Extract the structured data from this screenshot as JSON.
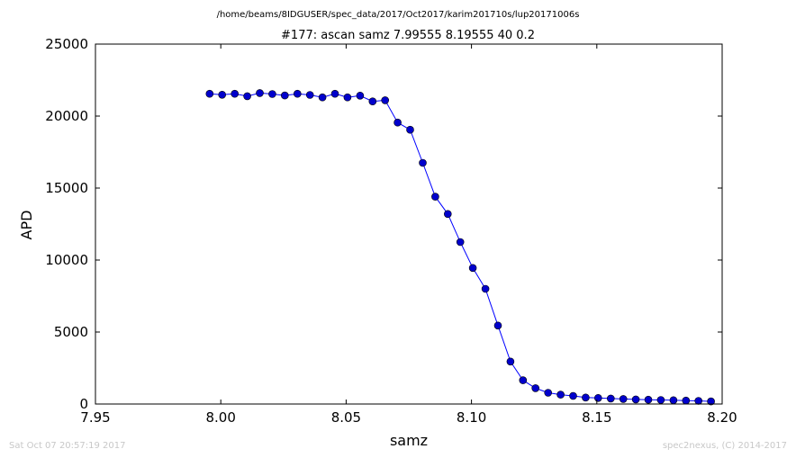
{
  "chart_data": {
    "type": "line",
    "suptitle": "/home/beams/8IDGUSER/spec_data/2017/Oct2017/karim201710s/lup20171006s",
    "title": "#177: ascan  samz 7.99555 8.19555  40 0.2",
    "xlabel": "samz",
    "ylabel": "APD",
    "xlim": [
      7.95,
      8.2
    ],
    "ylim": [
      0,
      25000
    ],
    "x_ticks": [
      {
        "value": 7.95,
        "label": "7.95"
      },
      {
        "value": 8.0,
        "label": "8.00"
      },
      {
        "value": 8.05,
        "label": "8.05"
      },
      {
        "value": 8.1,
        "label": "8.10"
      },
      {
        "value": 8.15,
        "label": "8.15"
      },
      {
        "value": 8.2,
        "label": "8.20"
      }
    ],
    "y_ticks": [
      {
        "value": 0,
        "label": "0"
      },
      {
        "value": 5000,
        "label": "5000"
      },
      {
        "value": 10000,
        "label": "10000"
      },
      {
        "value": 15000,
        "label": "15000"
      },
      {
        "value": 20000,
        "label": "20000"
      },
      {
        "value": 25000,
        "label": "25000"
      }
    ],
    "grid": false,
    "line_color": "#0000ff",
    "marker_color": "#0000cc",
    "x": [
      7.99555,
      8.00055,
      8.00555,
      8.01055,
      8.01555,
      8.02055,
      8.02555,
      8.03055,
      8.03555,
      8.04055,
      8.04555,
      8.05055,
      8.05555,
      8.06055,
      8.06555,
      8.07055,
      8.07555,
      8.08055,
      8.08555,
      8.09055,
      8.09555,
      8.10055,
      8.10555,
      8.11055,
      8.11555,
      8.12055,
      8.12555,
      8.13055,
      8.13555,
      8.14055,
      8.14555,
      8.15055,
      8.15555,
      8.16055,
      8.16555,
      8.17055,
      8.17555,
      8.18055,
      8.18555,
      8.19055,
      8.19555
    ],
    "y": [
      21550,
      21480,
      21550,
      21380,
      21600,
      21530,
      21430,
      21550,
      21470,
      21300,
      21550,
      21300,
      21420,
      21020,
      21100,
      19550,
      19050,
      16750,
      14400,
      13200,
      11250,
      9450,
      8000,
      5450,
      2950,
      1650,
      1100,
      780,
      650,
      560,
      450,
      420,
      380,
      350,
      320,
      300,
      280,
      260,
      240,
      220,
      180
    ]
  },
  "footer": {
    "timestamp": "Sat Oct 07 20:57:19 2017",
    "credit": "spec2nexus, (C) 2014-2017"
  }
}
